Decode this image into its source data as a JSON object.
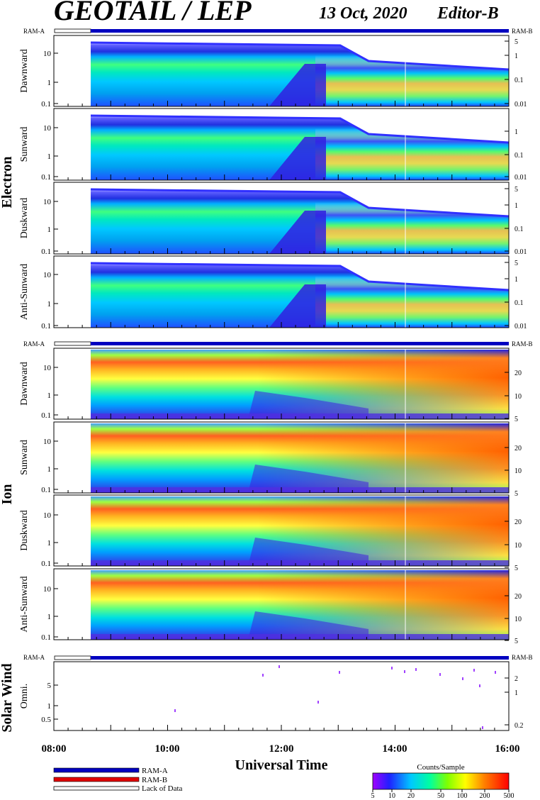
{
  "header": {
    "title": "GEOTAIL / LEP",
    "date": "13 Oct, 2020",
    "editor": "Editor-B"
  },
  "ram_a_label": "RAM-A",
  "ram_b_label": "RAM-B",
  "sections": {
    "electron": "Electron",
    "ion": "Ion",
    "solar_wind": "Solar Wind"
  },
  "xaxis": {
    "title": "Universal Time",
    "ticks": [
      "08:00",
      "10:00",
      "12:00",
      "14:00",
      "16:00"
    ]
  },
  "legend": {
    "ram_a": "RAM-A",
    "ram_b": "RAM-B",
    "lack": "Lack of Data",
    "colors": {
      "ram_a": "#0000c0",
      "ram_b": "#e00000"
    }
  },
  "colorbar": {
    "title": "Counts/Sample",
    "ticks": [
      "5",
      "10",
      "20",
      "50",
      "100",
      "200",
      "500"
    ]
  },
  "chart_data": [
    {
      "type": "heatmap",
      "species": "Electron",
      "ylabel": "Dawnward",
      "left_ticks": [
        "10",
        "1",
        "0.1"
      ],
      "right_ticks": [
        "5",
        "1",
        "0.1",
        "0.01"
      ],
      "data_start_time": "08:40",
      "time_range": [
        "08:00",
        "16:00"
      ]
    },
    {
      "type": "heatmap",
      "species": "Electron",
      "ylabel": "Sunward",
      "left_ticks": [
        "10",
        "1",
        "0.1"
      ],
      "right_ticks": [
        "1",
        "0.1",
        "0.01"
      ],
      "data_start_time": "08:40",
      "time_range": [
        "08:00",
        "16:00"
      ]
    },
    {
      "type": "heatmap",
      "species": "Electron",
      "ylabel": "Duskward",
      "left_ticks": [
        "10",
        "1",
        "0.1"
      ],
      "right_ticks": [
        "5",
        "1",
        "0.1",
        "0.01"
      ],
      "data_start_time": "08:40",
      "time_range": [
        "08:00",
        "16:00"
      ]
    },
    {
      "type": "heatmap",
      "species": "Electron",
      "ylabel": "Anti-Sunward",
      "left_ticks": [
        "10",
        "1",
        "0.1"
      ],
      "right_ticks": [
        "5",
        "1",
        "0.1",
        "0.01"
      ],
      "data_start_time": "08:40",
      "time_range": [
        "08:00",
        "16:00"
      ]
    },
    {
      "type": "heatmap",
      "species": "Ion",
      "ylabel": "Dawnward",
      "left_ticks": [
        "10",
        "1",
        "0.1"
      ],
      "right_ticks": [
        "20",
        "10",
        "5"
      ],
      "data_start_time": "08:40",
      "time_range": [
        "08:00",
        "16:00"
      ]
    },
    {
      "type": "heatmap",
      "species": "Ion",
      "ylabel": "Sunward",
      "left_ticks": [
        "10",
        "1",
        "0.1"
      ],
      "right_ticks": [
        "20",
        "10",
        "5"
      ],
      "data_start_time": "08:40",
      "time_range": [
        "08:00",
        "16:00"
      ]
    },
    {
      "type": "heatmap",
      "species": "Ion",
      "ylabel": "Duskward",
      "left_ticks": [
        "10",
        "1",
        "0.1"
      ],
      "right_ticks": [
        "20",
        "10",
        "5"
      ],
      "data_start_time": "08:40",
      "time_range": [
        "08:00",
        "16:00"
      ]
    },
    {
      "type": "heatmap",
      "species": "Ion",
      "ylabel": "Anti-Sunward",
      "left_ticks": [
        "10",
        "1",
        "0.1"
      ],
      "right_ticks": [
        "20",
        "10",
        "5"
      ],
      "data_start_time": "08:40",
      "time_range": [
        "08:00",
        "16:00"
      ]
    },
    {
      "type": "heatmap",
      "species": "Solar Wind",
      "ylabel": "Omni.",
      "left_ticks": [
        "5",
        "1",
        "0.5"
      ],
      "right_ticks": [
        "2",
        "1",
        "0.2"
      ],
      "data_start_time": "08:40",
      "time_range": [
        "08:00",
        "16:00"
      ]
    }
  ]
}
